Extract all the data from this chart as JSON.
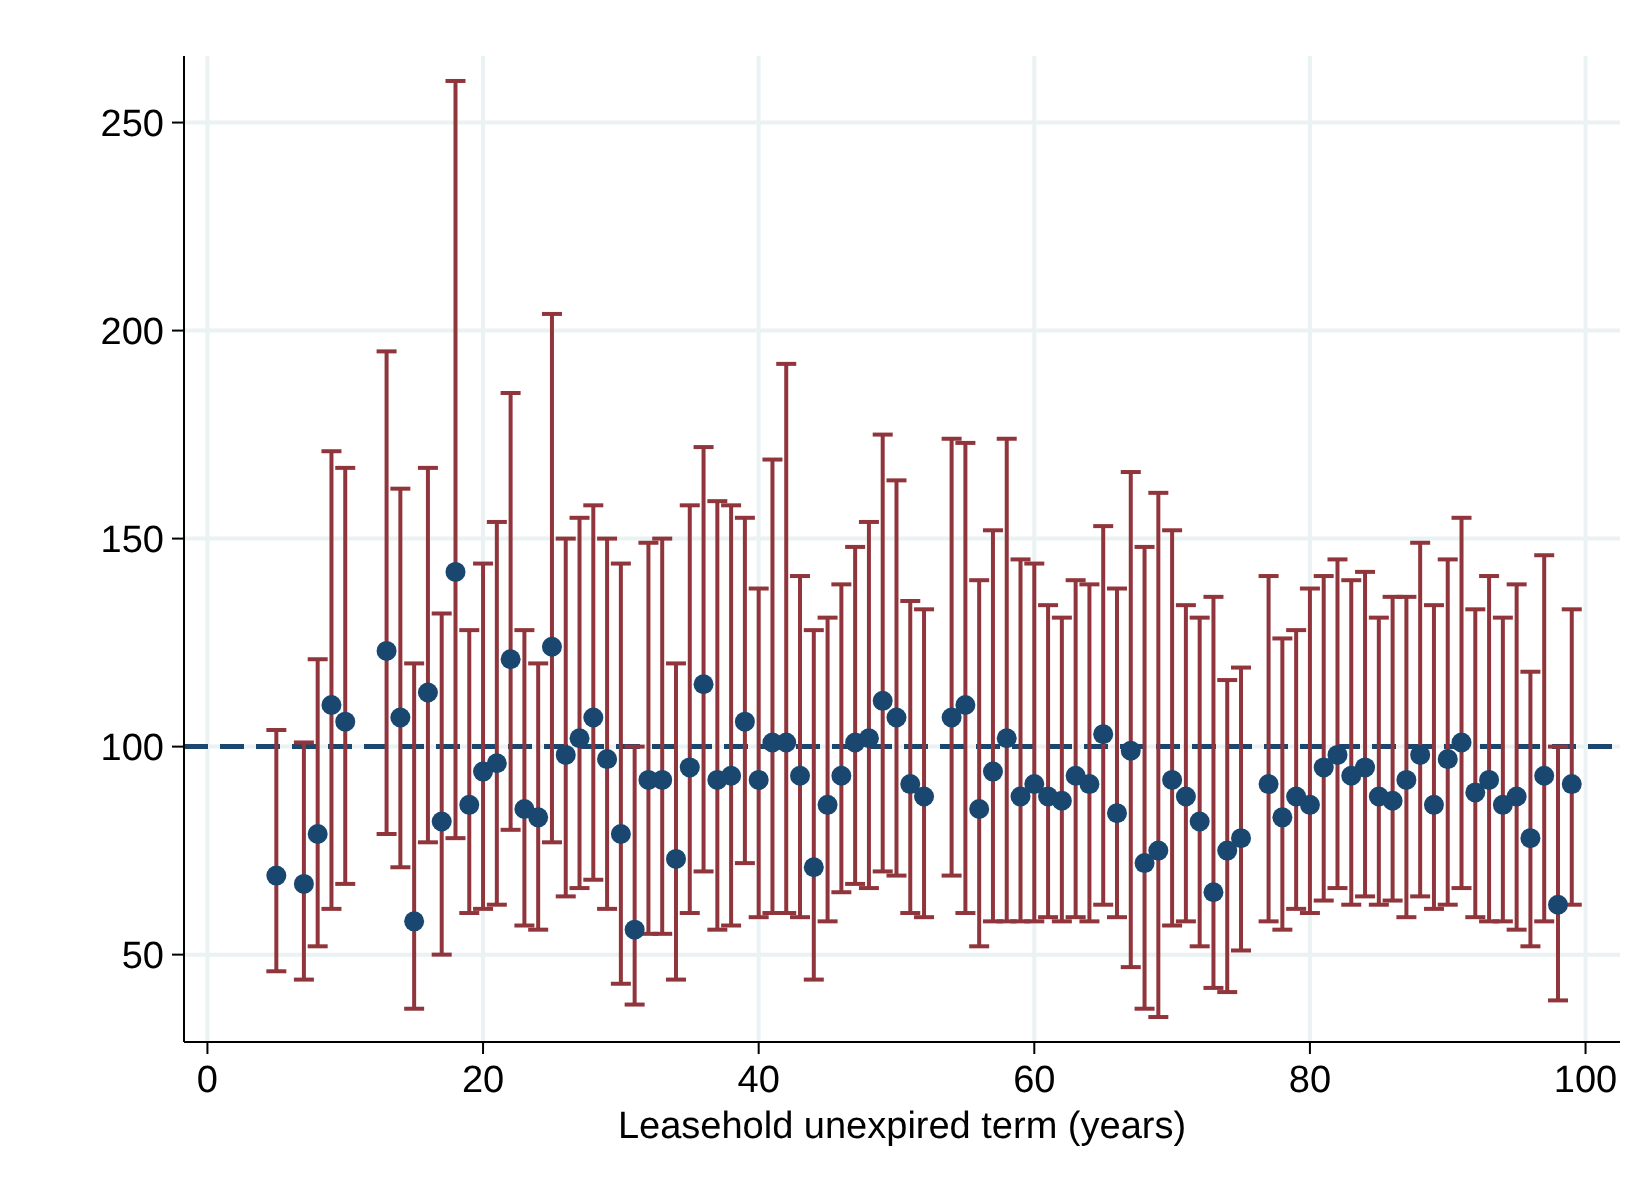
{
  "chart_data": {
    "type": "scatter",
    "xlabel": "Leasehold unexpired term (years)",
    "x": [
      5,
      7,
      8,
      9,
      10,
      13,
      14,
      15,
      16,
      17,
      18,
      19,
      20,
      21,
      22,
      23,
      24,
      25,
      26,
      27,
      28,
      29,
      30,
      31,
      32,
      33,
      34,
      35,
      36,
      37,
      38,
      39,
      40,
      41,
      42,
      43,
      44,
      45,
      46,
      47,
      48,
      49,
      50,
      51,
      52,
      54,
      55,
      56,
      57,
      58,
      59,
      60,
      61,
      62,
      63,
      64,
      65,
      66,
      67,
      68,
      69,
      70,
      71,
      72,
      73,
      74,
      75,
      77,
      78,
      79,
      80,
      81,
      82,
      83,
      84,
      85,
      86,
      87,
      88,
      89,
      90,
      91,
      92,
      93,
      94,
      95,
      96,
      97,
      98,
      99
    ],
    "series": [
      {
        "color": "#1a476f",
        "values": [
          69,
          67,
          79,
          110,
          106,
          123,
          107,
          58,
          113,
          82,
          142,
          86,
          94,
          96,
          121,
          85,
          83,
          124,
          98,
          102,
          107,
          97,
          79,
          56,
          92,
          92,
          73,
          95,
          115,
          92,
          93,
          106,
          92,
          101,
          101,
          93,
          71,
          86,
          93,
          101,
          102,
          111,
          107,
          91,
          88,
          107,
          110,
          85,
          94,
          102,
          88,
          91,
          88,
          87,
          93,
          91,
          103,
          84,
          99,
          72,
          75,
          92,
          88,
          82,
          65,
          75,
          78,
          91,
          83,
          88,
          86,
          95,
          98,
          93,
          95,
          88,
          87,
          92,
          98,
          86,
          97,
          101,
          89,
          92,
          86,
          88,
          78,
          93,
          62,
          91
        ],
        "errors": [
          [
            46,
            104
          ],
          [
            44,
            101
          ],
          [
            52,
            121
          ],
          [
            61,
            171
          ],
          [
            67,
            167
          ],
          [
            79,
            195
          ],
          [
            71,
            162
          ],
          [
            37,
            120
          ],
          [
            77,
            167
          ],
          [
            50,
            132
          ],
          [
            78,
            260
          ],
          [
            60,
            128
          ],
          [
            61,
            144
          ],
          [
            62,
            154
          ],
          [
            80,
            185
          ],
          [
            57,
            128
          ],
          [
            56,
            120
          ],
          [
            77,
            204
          ],
          [
            64,
            150
          ],
          [
            66,
            155
          ],
          [
            68,
            158
          ],
          [
            61,
            150
          ],
          [
            43,
            144
          ],
          [
            38,
            100
          ],
          [
            55,
            149
          ],
          [
            55,
            150
          ],
          [
            44,
            120
          ],
          [
            60,
            158
          ],
          [
            70,
            172
          ],
          [
            56,
            159
          ],
          [
            57,
            158
          ],
          [
            72,
            155
          ],
          [
            59,
            138
          ],
          [
            60,
            169
          ],
          [
            60,
            192
          ],
          [
            59,
            141
          ],
          [
            44,
            128
          ],
          [
            58,
            131
          ],
          [
            65,
            139
          ],
          [
            67,
            148
          ],
          [
            66,
            154
          ],
          [
            70,
            175
          ],
          [
            69,
            164
          ],
          [
            60,
            135
          ],
          [
            59,
            133
          ],
          [
            69,
            174
          ],
          [
            60,
            173
          ],
          [
            52,
            140
          ],
          [
            58,
            152
          ],
          [
            58,
            174
          ],
          [
            58,
            145
          ],
          [
            58,
            144
          ],
          [
            59,
            134
          ],
          [
            58,
            131
          ],
          [
            59,
            140
          ],
          [
            58,
            139
          ],
          [
            62,
            153
          ],
          [
            59,
            138
          ],
          [
            47,
            166
          ],
          [
            37,
            148
          ],
          [
            35,
            161
          ],
          [
            57,
            152
          ],
          [
            58,
            134
          ],
          [
            52,
            131
          ],
          [
            42,
            136
          ],
          [
            41,
            116
          ],
          [
            51,
            119
          ],
          [
            58,
            141
          ],
          [
            56,
            126
          ],
          [
            61,
            128
          ],
          [
            60,
            138
          ],
          [
            63,
            141
          ],
          [
            66,
            145
          ],
          [
            62,
            140
          ],
          [
            64,
            142
          ],
          [
            62,
            131
          ],
          [
            63,
            136
          ],
          [
            59,
            136
          ],
          [
            64,
            149
          ],
          [
            61,
            134
          ],
          [
            62,
            145
          ],
          [
            66,
            155
          ],
          [
            59,
            133
          ],
          [
            58,
            141
          ],
          [
            58,
            131
          ],
          [
            56,
            139
          ],
          [
            52,
            118
          ],
          [
            58,
            146
          ],
          [
            39,
            100
          ],
          [
            62,
            133
          ]
        ]
      }
    ],
    "xlim": [
      -1.7,
      102.5
    ],
    "ylim": [
      29,
      266
    ],
    "xticks": [
      0,
      20,
      40,
      60,
      80,
      100
    ],
    "yticks": [
      50,
      100,
      150,
      200,
      250
    ],
    "grid": true,
    "marker": "circle",
    "ref_lines": [
      {
        "axis": "y",
        "value": 100,
        "color": "#1a476f",
        "line_style": "dashed"
      }
    ]
  }
}
